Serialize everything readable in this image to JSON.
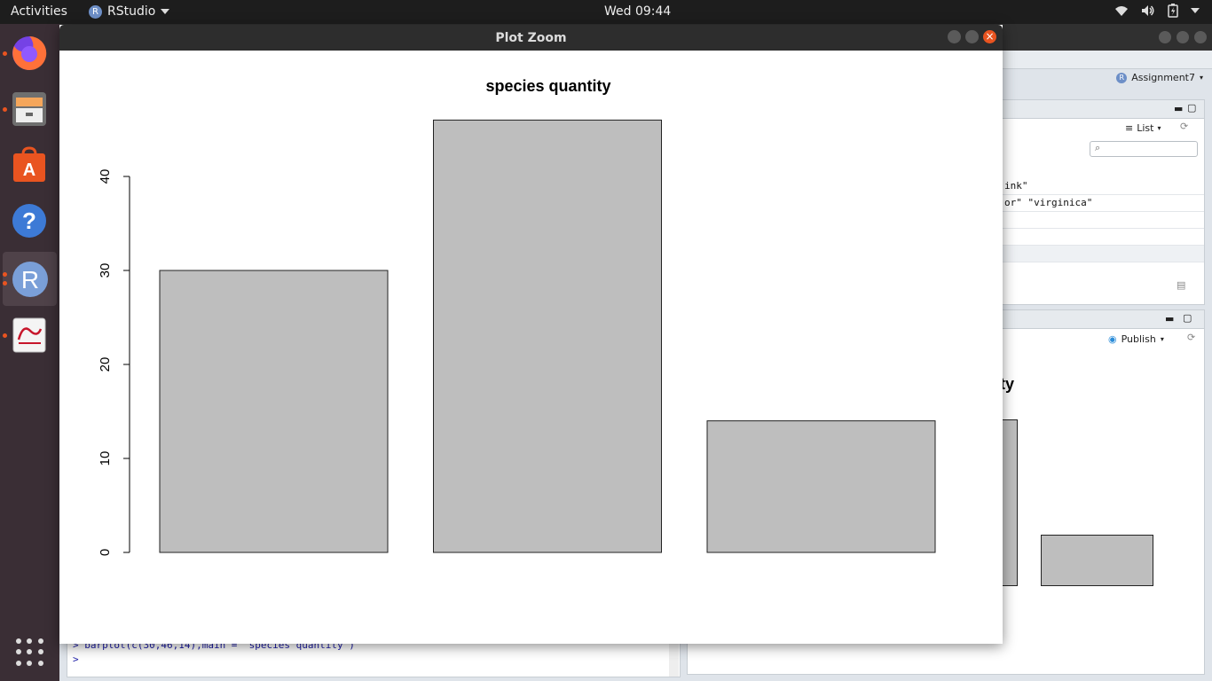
{
  "topbar": {
    "activities": "Activities",
    "app_name": "RStudio",
    "app_icon_letter": "R",
    "clock": "Wed 09:44"
  },
  "dock": {
    "items": [
      "firefox-icon",
      "files-icon",
      "software-center-icon",
      "help-icon",
      "rstudio-icon",
      "document-viewer-icon"
    ],
    "r_letter": "R"
  },
  "rstudio": {
    "project": "Assignment7",
    "env_list_label": "List",
    "env_rows": [
      "ink\"",
      "or\"  \"virginica\""
    ],
    "plots_publish": "Publish",
    "plots_title_fragment": "ntity",
    "console_lines": [
      "> barplot(c(30,46,14),main = \"species quantity\")",
      ">"
    ]
  },
  "zoom_window": {
    "title": "Plot Zoom"
  },
  "chart_data": {
    "type": "bar",
    "title": "species quantity",
    "values": [
      30,
      46,
      14
    ],
    "yticks": [
      0,
      10,
      20,
      30,
      40
    ],
    "ylim": [
      0,
      46
    ],
    "xlabel": "",
    "ylabel": "",
    "bar_color": "#bebebe",
    "border_color": "#222222"
  },
  "colors": {
    "accent": "#e95420",
    "topbar": "#1d1d1d",
    "dock": "#3a2e35"
  }
}
